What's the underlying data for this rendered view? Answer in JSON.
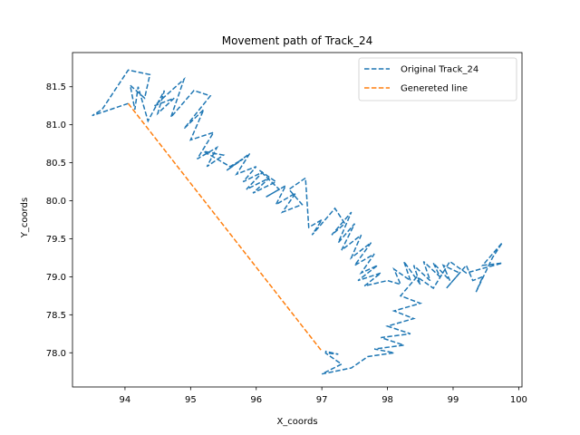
{
  "chart_data": {
    "type": "line",
    "title": "Movement path of Track_24",
    "xlabel": "X_coords",
    "ylabel": "Y_coords",
    "xlim": [
      93.2,
      100.05
    ],
    "ylim": [
      77.55,
      81.95
    ],
    "xticks": [
      94,
      95,
      96,
      97,
      98,
      99,
      100
    ],
    "yticks": [
      78.0,
      78.5,
      79.0,
      79.5,
      80.0,
      80.5,
      81.0,
      81.5
    ],
    "xtick_labels": [
      "94",
      "95",
      "96",
      "97",
      "98",
      "99",
      "100"
    ],
    "ytick_labels": [
      "78.0",
      "78.5",
      "79.0",
      "79.5",
      "80.0",
      "80.5",
      "81.0",
      "81.5"
    ],
    "grid": false,
    "legend_position": "top-right",
    "series": [
      {
        "name": "Original Track_24",
        "color": "#1f77b4",
        "linestyle": "dashed",
        "points": [
          [
            94.05,
            81.28
          ],
          [
            93.5,
            81.12
          ],
          [
            93.65,
            81.2
          ],
          [
            94.05,
            81.72
          ],
          [
            94.38,
            81.66
          ],
          [
            94.3,
            81.35
          ],
          [
            94.08,
            81.52
          ],
          [
            94.15,
            81.2
          ],
          [
            94.2,
            81.5
          ],
          [
            94.35,
            81.05
          ],
          [
            94.6,
            81.45
          ],
          [
            94.5,
            81.15
          ],
          [
            94.75,
            81.35
          ],
          [
            94.45,
            81.25
          ],
          [
            94.9,
            81.6
          ],
          [
            94.7,
            81.1
          ],
          [
            95.05,
            81.45
          ],
          [
            95.3,
            81.38
          ],
          [
            94.9,
            80.95
          ],
          [
            95.2,
            81.2
          ],
          [
            95.0,
            80.8
          ],
          [
            95.35,
            80.9
          ],
          [
            95.1,
            80.55
          ],
          [
            95.4,
            80.7
          ],
          [
            95.25,
            80.45
          ],
          [
            95.5,
            80.6
          ],
          [
            95.2,
            80.65
          ],
          [
            95.6,
            80.45
          ],
          [
            95.8,
            80.55
          ],
          [
            95.55,
            80.4
          ],
          [
            95.9,
            80.62
          ],
          [
            95.7,
            80.35
          ],
          [
            96.0,
            80.45
          ],
          [
            95.8,
            80.25
          ],
          [
            96.1,
            80.38
          ],
          [
            95.85,
            80.15
          ],
          [
            96.2,
            80.3
          ],
          [
            95.95,
            80.1
          ],
          [
            96.3,
            80.25
          ],
          [
            96.05,
            80.4
          ],
          [
            96.35,
            80.15
          ],
          [
            96.15,
            80.05
          ],
          [
            96.45,
            80.2
          ],
          [
            96.3,
            79.95
          ],
          [
            96.6,
            80.1
          ],
          [
            96.4,
            79.85
          ],
          [
            96.7,
            79.95
          ],
          [
            96.5,
            80.15
          ],
          [
            96.75,
            80.3
          ],
          [
            96.8,
            79.65
          ],
          [
            97.0,
            79.75
          ],
          [
            96.85,
            79.55
          ],
          [
            97.2,
            79.9
          ],
          [
            97.35,
            79.7
          ],
          [
            97.15,
            79.55
          ],
          [
            97.45,
            79.85
          ],
          [
            97.25,
            79.45
          ],
          [
            97.5,
            79.7
          ],
          [
            97.3,
            79.35
          ],
          [
            97.6,
            79.55
          ],
          [
            97.45,
            79.25
          ],
          [
            97.75,
            79.45
          ],
          [
            97.5,
            79.15
          ],
          [
            97.8,
            79.3
          ],
          [
            97.6,
            79.05
          ],
          [
            97.85,
            79.15
          ],
          [
            97.55,
            78.95
          ],
          [
            97.9,
            79.05
          ],
          [
            97.65,
            78.88
          ],
          [
            98.0,
            78.95
          ],
          [
            98.2,
            78.9
          ],
          [
            98.1,
            79.1
          ],
          [
            98.35,
            78.95
          ],
          [
            98.25,
            79.2
          ],
          [
            98.5,
            78.9
          ],
          [
            98.4,
            79.15
          ],
          [
            98.65,
            78.95
          ],
          [
            98.55,
            79.2
          ],
          [
            98.8,
            79.0
          ],
          [
            98.7,
            79.18
          ],
          [
            98.95,
            78.95
          ],
          [
            98.85,
            79.15
          ],
          [
            99.1,
            79.05
          ],
          [
            98.9,
            78.85
          ],
          [
            99.2,
            79.15
          ],
          [
            99.3,
            78.95
          ],
          [
            99.45,
            79.0
          ],
          [
            99.35,
            78.8
          ],
          [
            99.6,
            79.25
          ],
          [
            99.75,
            79.45
          ],
          [
            99.45,
            79.15
          ],
          [
            99.75,
            79.18
          ],
          [
            99.2,
            79.05
          ],
          [
            98.95,
            79.2
          ],
          [
            98.7,
            78.85
          ],
          [
            98.45,
            79.0
          ],
          [
            98.2,
            78.75
          ],
          [
            98.5,
            78.65
          ],
          [
            98.1,
            78.55
          ],
          [
            98.4,
            78.45
          ],
          [
            98.0,
            78.35
          ],
          [
            98.35,
            78.25
          ],
          [
            97.9,
            78.2
          ],
          [
            98.25,
            78.1
          ],
          [
            97.8,
            78.05
          ],
          [
            98.1,
            78.0
          ],
          [
            97.7,
            77.95
          ],
          [
            97.45,
            77.8
          ],
          [
            97.0,
            77.72
          ],
          [
            97.3,
            77.85
          ],
          [
            97.05,
            78.0
          ],
          [
            97.25,
            77.98
          ],
          [
            97.05,
            78.02
          ]
        ]
      },
      {
        "name": "Genereted line",
        "color": "#ff7f0e",
        "linestyle": "dashed",
        "points": [
          [
            94.05,
            81.28
          ],
          [
            97.0,
            78.02
          ]
        ]
      }
    ]
  }
}
